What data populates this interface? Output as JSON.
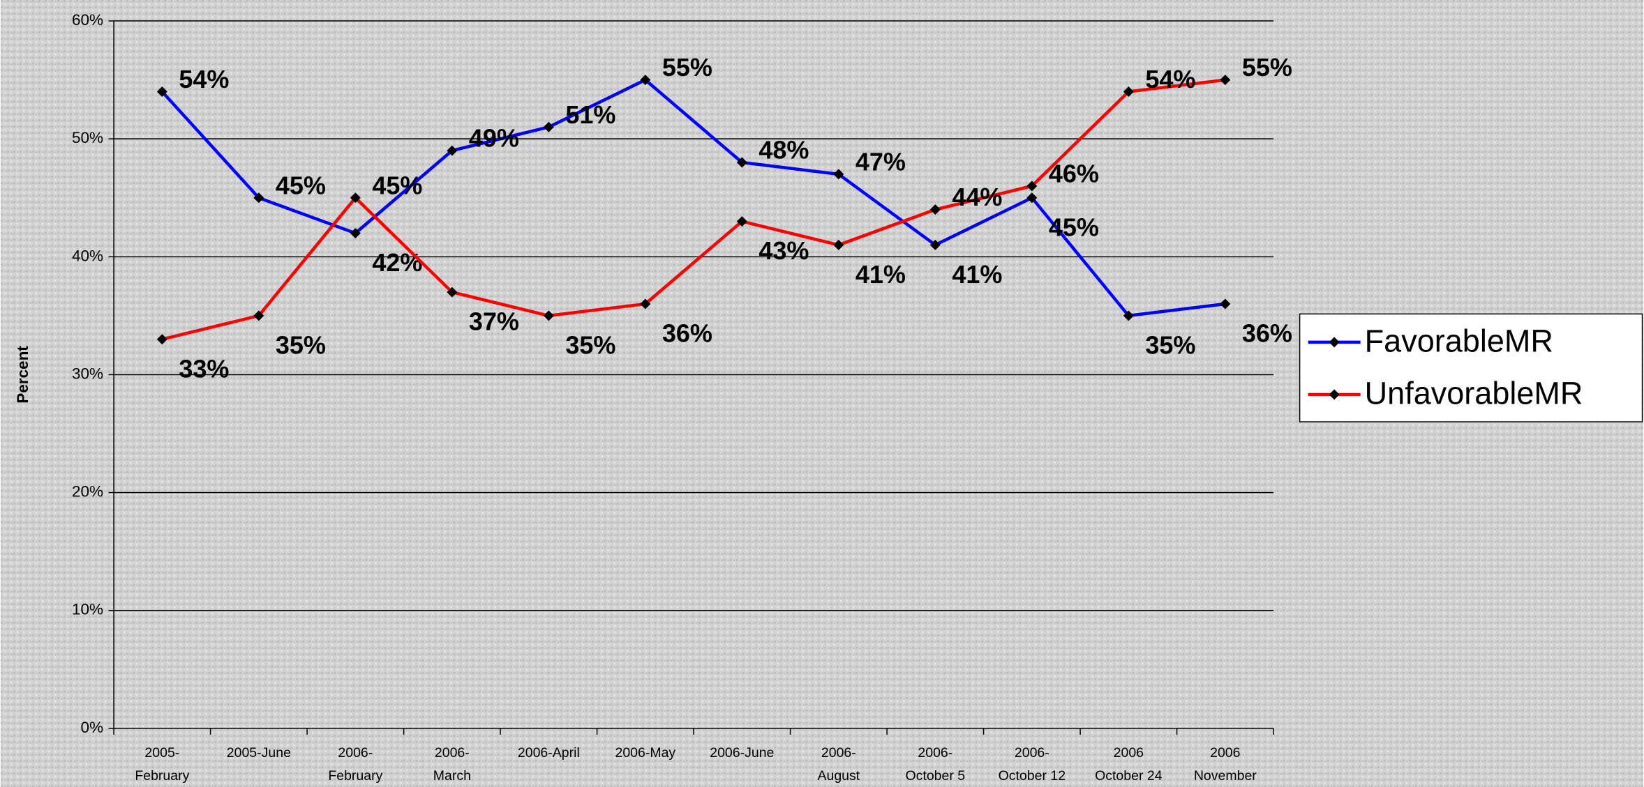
{
  "chart_data": {
    "type": "line",
    "y_label": "Percent",
    "categories": [
      [
        "2005-",
        "February"
      ],
      [
        "2005-June"
      ],
      [
        "2006-",
        "February"
      ],
      [
        "2006-",
        "March"
      ],
      [
        "2006-April"
      ],
      [
        "2006-May"
      ],
      [
        "2006-June"
      ],
      [
        "2006-",
        "August"
      ],
      [
        "2006-",
        "October 5"
      ],
      [
        "2006-",
        "October 12"
      ],
      [
        "2006",
        "October 24"
      ],
      [
        "2006",
        "November"
      ]
    ],
    "series": [
      {
        "name": "FavorableMR",
        "color": "#0000ff",
        "values": [
          54,
          45,
          42,
          49,
          51,
          55,
          48,
          47,
          41,
          45,
          35,
          36
        ],
        "value_labels": [
          "54%",
          "45%",
          "42%",
          "49%",
          "51%",
          "55%",
          "48%",
          "47%",
          "41%",
          "45%",
          "35%",
          "36%"
        ]
      },
      {
        "name": "UnfavorableMR",
        "color": "#ff0000",
        "values": [
          33,
          35,
          45,
          37,
          35,
          36,
          43,
          41,
          44,
          46,
          54,
          55
        ],
        "value_labels": [
          "33%",
          "35%",
          "45%",
          "37%",
          "35%",
          "36%",
          "43%",
          "41%",
          "44%",
          "46%",
          "54%",
          "55%"
        ]
      }
    ],
    "ylim": [
      0,
      60
    ],
    "yticks": [
      {
        "value": 0,
        "label": "0%"
      },
      {
        "value": 10,
        "label": "10%"
      },
      {
        "value": 20,
        "label": "20%"
      },
      {
        "value": 30,
        "label": "30%"
      },
      {
        "value": 40,
        "label": "40%"
      },
      {
        "value": 50,
        "label": "50%"
      },
      {
        "value": 60,
        "label": "60%"
      }
    ],
    "grid": true,
    "legend": "right"
  }
}
